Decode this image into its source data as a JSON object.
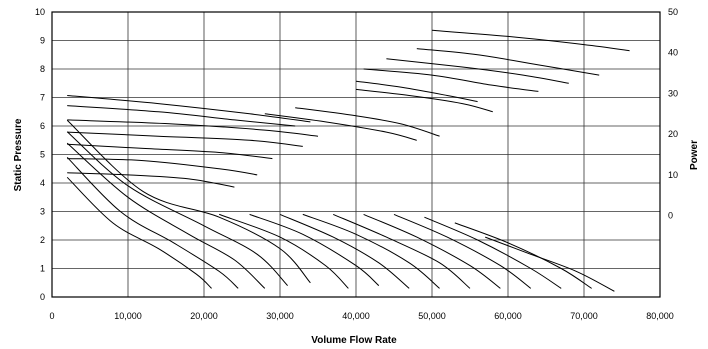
{
  "chart_data": {
    "type": "line",
    "xlabel": "Volume Flow Rate",
    "ylabel": "Static Pressure",
    "y2label": "Power",
    "xlim": [
      0,
      80000
    ],
    "ylim": [
      0,
      10
    ],
    "y2lim": [
      -20,
      50
    ],
    "grid": true,
    "x_ticks": [
      "0",
      "10,000",
      "20,000",
      "30,000",
      "40,000",
      "50,000",
      "60,000",
      "70,000",
      "80,000"
    ],
    "y_ticks": [
      "0",
      "1",
      "2",
      "3",
      "4",
      "5",
      "6",
      "7",
      "8",
      "9",
      "10"
    ],
    "y2_ticks": [
      "0",
      "10",
      "20",
      "30",
      "40",
      "50"
    ],
    "pressure_series": [
      {
        "x": [
          2000,
          8000,
          14000,
          19000,
          21000
        ],
        "y": [
          4.2,
          2.6,
          1.7,
          0.8,
          0.3
        ]
      },
      {
        "x": [
          2000,
          9000,
          16000,
          22000,
          24500
        ],
        "y": [
          4.9,
          3.0,
          1.9,
          0.9,
          0.3
        ]
      },
      {
        "x": [
          2000,
          10000,
          18000,
          24000,
          28000
        ],
        "y": [
          5.4,
          3.5,
          2.2,
          1.3,
          0.3
        ]
      },
      {
        "x": [
          2000,
          10000,
          20000,
          27000,
          31000
        ],
        "y": [
          5.8,
          3.9,
          2.5,
          1.5,
          0.4
        ]
      },
      {
        "x": [
          2000,
          12000,
          22000,
          30000,
          34000
        ],
        "y": [
          6.2,
          3.7,
          2.8,
          1.7,
          0.5
        ]
      },
      {
        "x": [
          22000,
          30000,
          36000,
          39000
        ],
        "y": [
          2.9,
          2.1,
          1.1,
          0.3
        ]
      },
      {
        "x": [
          26000,
          33000,
          40000,
          43000
        ],
        "y": [
          2.9,
          2.2,
          1.1,
          0.4
        ]
      },
      {
        "x": [
          30000,
          37000,
          43000,
          47000
        ],
        "y": [
          2.9,
          2.1,
          1.2,
          0.3
        ]
      },
      {
        "x": [
          33000,
          40000,
          47000,
          51000
        ],
        "y": [
          2.9,
          2.2,
          1.2,
          0.3
        ]
      },
      {
        "x": [
          37000,
          44000,
          51000,
          55000
        ],
        "y": [
          2.9,
          2.1,
          1.2,
          0.3
        ]
      },
      {
        "x": [
          41000,
          48000,
          55000,
          59000
        ],
        "y": [
          2.9,
          2.1,
          1.1,
          0.3
        ]
      },
      {
        "x": [
          45000,
          52000,
          59000,
          63000
        ],
        "y": [
          2.9,
          2.1,
          1.1,
          0.3
        ]
      },
      {
        "x": [
          49000,
          56000,
          63000,
          67000
        ],
        "y": [
          2.8,
          2.0,
          1.0,
          0.3
        ]
      },
      {
        "x": [
          53000,
          60000,
          67000,
          71000
        ],
        "y": [
          2.6,
          1.9,
          1.0,
          0.3
        ]
      },
      {
        "x": [
          57000,
          63000,
          69000,
          74000
        ],
        "y": [
          2.1,
          1.5,
          0.9,
          0.2
        ]
      }
    ],
    "power_series": [
      {
        "x": [
          2000,
          10000,
          18000,
          24000
        ],
        "p": [
          10.5,
          10.0,
          9.0,
          7.0
        ]
      },
      {
        "x": [
          2000,
          12000,
          22000,
          27000
        ],
        "p": [
          14.0,
          13.5,
          11.5,
          10.0
        ]
      },
      {
        "x": [
          2000,
          12000,
          22000,
          29000
        ],
        "p": [
          17.5,
          16.5,
          15.5,
          14.0
        ]
      },
      {
        "x": [
          2000,
          14000,
          26000,
          33000
        ],
        "p": [
          20.5,
          19.5,
          18.5,
          17.0
        ]
      },
      {
        "x": [
          2000,
          16000,
          28000,
          35000
        ],
        "p": [
          23.5,
          22.5,
          21.0,
          19.5
        ]
      },
      {
        "x": [
          2000,
          14000,
          24000,
          32000
        ],
        "p": [
          27.0,
          25.5,
          23.5,
          22.0
        ]
      },
      {
        "x": [
          2000,
          14000,
          26000,
          34000
        ],
        "p": [
          29.5,
          27.5,
          25.0,
          23.0
        ]
      },
      {
        "x": [
          28000,
          36000,
          44000,
          48000
        ],
        "p": [
          25.0,
          23.0,
          20.5,
          18.5
        ]
      },
      {
        "x": [
          32000,
          40000,
          46000,
          51000
        ],
        "p": [
          26.5,
          24.5,
          22.5,
          19.5
        ]
      },
      {
        "x": [
          40000,
          46000,
          52000,
          56000
        ],
        "p": [
          33.0,
          31.5,
          29.5,
          28.0
        ]
      },
      {
        "x": [
          40000,
          47000,
          54000,
          58000
        ],
        "p": [
          31.0,
          29.5,
          27.5,
          25.5
        ]
      },
      {
        "x": [
          41000,
          50000,
          58000,
          64000
        ],
        "p": [
          36.0,
          34.5,
          32.0,
          30.5
        ]
      },
      {
        "x": [
          44000,
          54000,
          62000,
          68000
        ],
        "p": [
          38.5,
          36.5,
          34.5,
          32.5
        ]
      },
      {
        "x": [
          48000,
          56000,
          64000,
          72000
        ],
        "p": [
          41.0,
          39.5,
          37.0,
          34.5
        ]
      },
      {
        "x": [
          50000,
          60000,
          70000,
          76000
        ],
        "p": [
          45.5,
          44.0,
          42.0,
          40.5
        ]
      }
    ]
  }
}
